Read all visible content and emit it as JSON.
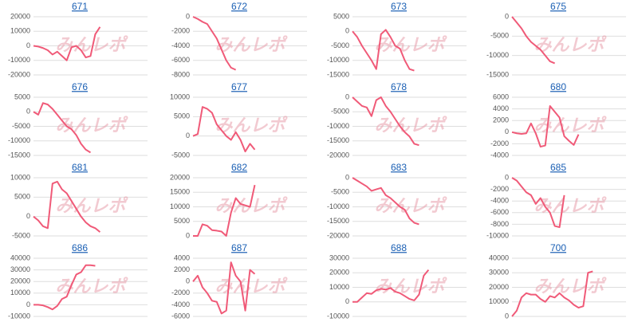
{
  "watermark": "みんレポ",
  "chart_data": [
    {
      "type": "line",
      "title": "671",
      "color": "#f05a78",
      "ylim": [
        -20000,
        20000
      ],
      "yticks": [
        -20000,
        -10000,
        0,
        10000,
        20000
      ],
      "values": [
        0,
        -500,
        -1500,
        -3000,
        -6000,
        -4000,
        -7000,
        -10000,
        -1000,
        0,
        -3000,
        -8000,
        -7000,
        8000,
        13000
      ]
    },
    {
      "type": "line",
      "title": "672",
      "color": "#f05a78",
      "ylim": [
        -8000,
        0
      ],
      "yticks": [
        -8000,
        -6000,
        -4000,
        -2000,
        0
      ],
      "values": [
        0,
        -300,
        -700,
        -1000,
        -2000,
        -3000,
        -4500,
        -6000,
        -7000,
        -7300
      ]
    },
    {
      "type": "line",
      "title": "673",
      "color": "#f05a78",
      "ylim": [
        -15000,
        5000
      ],
      "yticks": [
        -15000,
        -10000,
        -5000,
        0,
        5000
      ],
      "values": [
        0,
        -2000,
        -5000,
        -7500,
        -10000,
        -13000,
        -1000,
        500,
        -2000,
        -5000,
        -6000,
        -10000,
        -13000,
        -13500
      ]
    },
    {
      "type": "line",
      "title": "675",
      "color": "#f05a78",
      "ylim": [
        -15000,
        0
      ],
      "yticks": [
        -15000,
        -10000,
        -5000,
        0
      ],
      "values": [
        0,
        -1500,
        -3000,
        -5000,
        -6500,
        -7500,
        -8500,
        -10000,
        -11500,
        -12000
      ]
    },
    {
      "type": "line",
      "title": "676",
      "color": "#f05a78",
      "ylim": [
        -15000,
        5000
      ],
      "yticks": [
        -15000,
        -10000,
        -5000,
        0,
        5000
      ],
      "values": [
        0,
        -1000,
        3000,
        2500,
        1000,
        -1000,
        -3000,
        -5000,
        -6000,
        -8000,
        -11000,
        -13000,
        -14000
      ]
    },
    {
      "type": "line",
      "title": "677",
      "color": "#f05a78",
      "ylim": [
        -5000,
        10000
      ],
      "yticks": [
        -5000,
        0,
        5000,
        10000
      ],
      "values": [
        0,
        500,
        7500,
        7000,
        6000,
        3000,
        1500,
        0,
        -1000,
        1000,
        -1000,
        -4000,
        -2000,
        -3500
      ]
    },
    {
      "type": "line",
      "title": "678",
      "color": "#f05a78",
      "ylim": [
        -20000,
        0
      ],
      "yticks": [
        -20000,
        -15000,
        -10000,
        -5000,
        0
      ],
      "values": [
        0,
        -1500,
        -3000,
        -3500,
        -6500,
        -1000,
        0,
        -3000,
        -5000,
        -7500,
        -10000,
        -12000,
        -13500,
        -16000,
        -16500
      ]
    },
    {
      "type": "line",
      "title": "680",
      "color": "#f05a78",
      "ylim": [
        -4000,
        6000
      ],
      "yticks": [
        -4000,
        -2000,
        0,
        2000,
        4000,
        6000
      ],
      "values": [
        0,
        -200,
        -300,
        -200,
        1500,
        -200,
        -2500,
        -2300,
        4500,
        3500,
        2500,
        -700,
        -1500,
        -2200,
        -400
      ]
    },
    {
      "type": "line",
      "title": "681",
      "color": "#f05a78",
      "ylim": [
        -5000,
        10000
      ],
      "yticks": [
        -5000,
        0,
        5000,
        10000
      ],
      "values": [
        0,
        -1000,
        -2500,
        -3000,
        8500,
        9000,
        7000,
        6000,
        4000,
        2000,
        0,
        -1500,
        -2500,
        -3000,
        -4000
      ]
    },
    {
      "type": "line",
      "title": "682",
      "color": "#f05a78",
      "ylim": [
        0,
        20000
      ],
      "yticks": [
        0,
        5000,
        10000,
        15000,
        20000
      ],
      "values": [
        0,
        0,
        4000,
        3500,
        2000,
        1800,
        1500,
        0,
        8000,
        13000,
        11000,
        10500,
        10000,
        17500
      ]
    },
    {
      "type": "line",
      "title": "683",
      "color": "#f05a78",
      "ylim": [
        -20000,
        0
      ],
      "yticks": [
        -20000,
        -15000,
        -10000,
        -5000,
        0
      ],
      "values": [
        0,
        -1000,
        -2000,
        -3000,
        -4500,
        -4000,
        -3500,
        -6000,
        -7000,
        -8500,
        -10000,
        -11000,
        -14000,
        -15500,
        -16000
      ]
    },
    {
      "type": "line",
      "title": "685",
      "color": "#f05a78",
      "ylim": [
        -10000,
        0
      ],
      "yticks": [
        -10000,
        -8000,
        -6000,
        -4000,
        -2000,
        0
      ],
      "values": [
        0,
        -500,
        -1500,
        -2500,
        -3000,
        -4500,
        -3500,
        -5000,
        -6000,
        -8300,
        -8500,
        -3000
      ]
    },
    {
      "type": "line",
      "title": "686",
      "color": "#f05a78",
      "ylim": [
        -10000,
        40000
      ],
      "yticks": [
        -10000,
        0,
        10000,
        20000,
        30000,
        40000
      ],
      "values": [
        0,
        0,
        -500,
        -2000,
        -4000,
        -1000,
        5000,
        7000,
        17000,
        26000,
        28000,
        34000,
        34000,
        33500
      ]
    },
    {
      "type": "line",
      "title": "687",
      "color": "#f05a78",
      "ylim": [
        -6000,
        4000
      ],
      "yticks": [
        -6000,
        -4000,
        -2000,
        0,
        2000,
        4000
      ],
      "values": [
        0,
        1000,
        -1000,
        -2000,
        -3300,
        -3500,
        -5500,
        -5000,
        3300,
        1000,
        0,
        -5000,
        2000,
        1300
      ]
    },
    {
      "type": "line",
      "title": "688",
      "color": "#f05a78",
      "ylim": [
        -10000,
        30000
      ],
      "yticks": [
        -10000,
        0,
        10000,
        20000,
        30000
      ],
      "values": [
        0,
        0,
        3000,
        6000,
        5500,
        8000,
        9000,
        8500,
        9500,
        7000,
        6000,
        4000,
        2000,
        1000,
        5000,
        18000,
        22000
      ]
    },
    {
      "type": "line",
      "title": "700",
      "color": "#f05a78",
      "ylim": [
        0,
        40000
      ],
      "yticks": [
        0,
        10000,
        20000,
        30000,
        40000
      ],
      "values": [
        0,
        4000,
        13000,
        16000,
        15000,
        15000,
        12000,
        10000,
        14000,
        13000,
        16000,
        13000,
        11000,
        8000,
        6000,
        7000,
        30000,
        31000
      ]
    }
  ]
}
